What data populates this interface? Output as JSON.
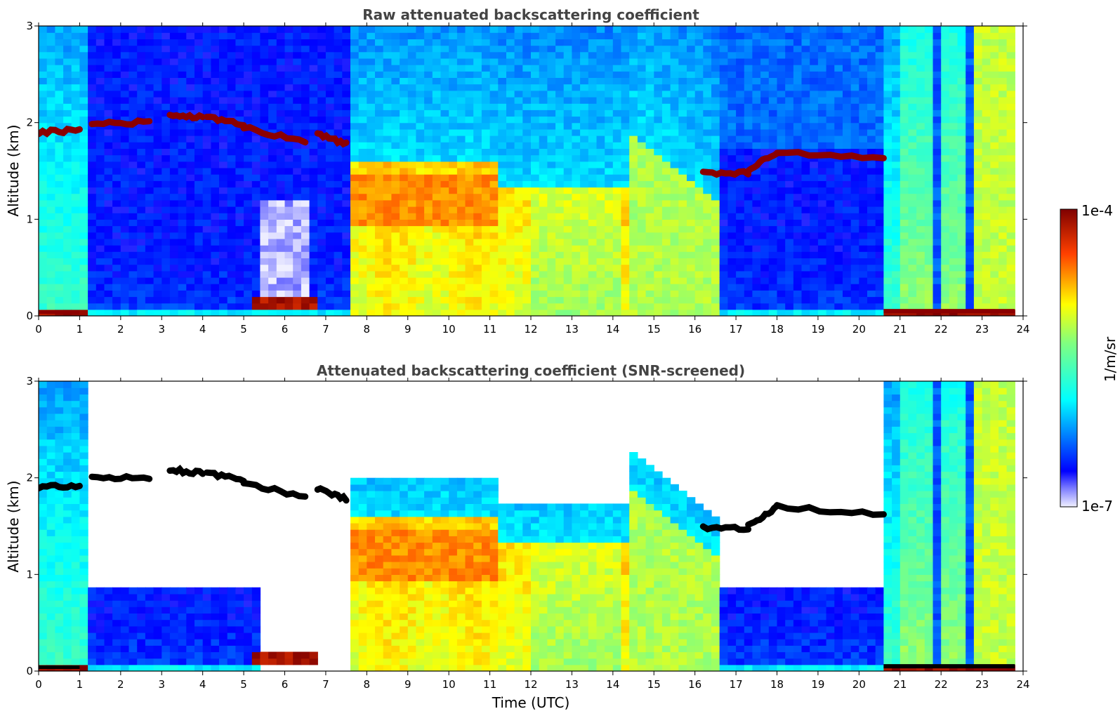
{
  "chart_data": [
    {
      "type": "heatmap",
      "title": "Raw attenuated backscattering coefficient",
      "xlabel": "",
      "ylabel": "Altitude (km)",
      "xlim": [
        0,
        24
      ],
      "ylim": [
        0,
        3
      ],
      "xticks": [
        0,
        1,
        2,
        3,
        4,
        5,
        6,
        7,
        8,
        9,
        10,
        11,
        12,
        13,
        14,
        15,
        16,
        17,
        18,
        19,
        20,
        21,
        22,
        23,
        24
      ],
      "yticks": [
        0,
        1,
        2,
        3
      ],
      "screened": false
    },
    {
      "type": "heatmap",
      "title": "Attenuated backscattering coefficient (SNR-screened)",
      "xlabel": "Time (UTC)",
      "ylabel": "Altitude (km)",
      "xlim": [
        0,
        24
      ],
      "ylim": [
        0,
        3
      ],
      "xticks": [
        0,
        1,
        2,
        3,
        4,
        5,
        6,
        7,
        8,
        9,
        10,
        11,
        12,
        13,
        14,
        15,
        16,
        17,
        18,
        19,
        20,
        21,
        22,
        23,
        24
      ],
      "yticks": [
        0,
        1,
        2,
        3
      ],
      "screened": true
    }
  ],
  "colorbar": {
    "label": "1/m/sr",
    "max_label": "1e-4",
    "min_label": "1e-7",
    "colormap": "jet",
    "scale": "log"
  },
  "features": {
    "cloud_layers": [
      {
        "t0": 0.0,
        "t1": 1.0,
        "h0": 1.9,
        "h1": 1.92
      },
      {
        "t0": 1.3,
        "t1": 2.7,
        "h0": 2.0,
        "h1": 2.0
      },
      {
        "t0": 3.2,
        "t1": 4.0,
        "h0": 2.08,
        "h1": 2.05
      },
      {
        "t0": 4.1,
        "t1": 5.0,
        "h0": 2.05,
        "h1": 1.98
      },
      {
        "t0": 5.0,
        "t1": 6.5,
        "h0": 1.95,
        "h1": 1.8
      },
      {
        "t0": 6.8,
        "t1": 7.5,
        "h0": 1.88,
        "h1": 1.78
      },
      {
        "t0": 16.2,
        "t1": 17.3,
        "h0": 1.48,
        "h1": 1.48
      },
      {
        "t0": 17.3,
        "t1": 18.0,
        "h0": 1.5,
        "h1": 1.7
      },
      {
        "t0": 18.0,
        "t1": 20.6,
        "h0": 1.7,
        "h1": 1.62
      }
    ],
    "aerosol_top_km": 1.6,
    "clear_window": {
      "t0": 5.4,
      "t1": 6.7
    }
  }
}
